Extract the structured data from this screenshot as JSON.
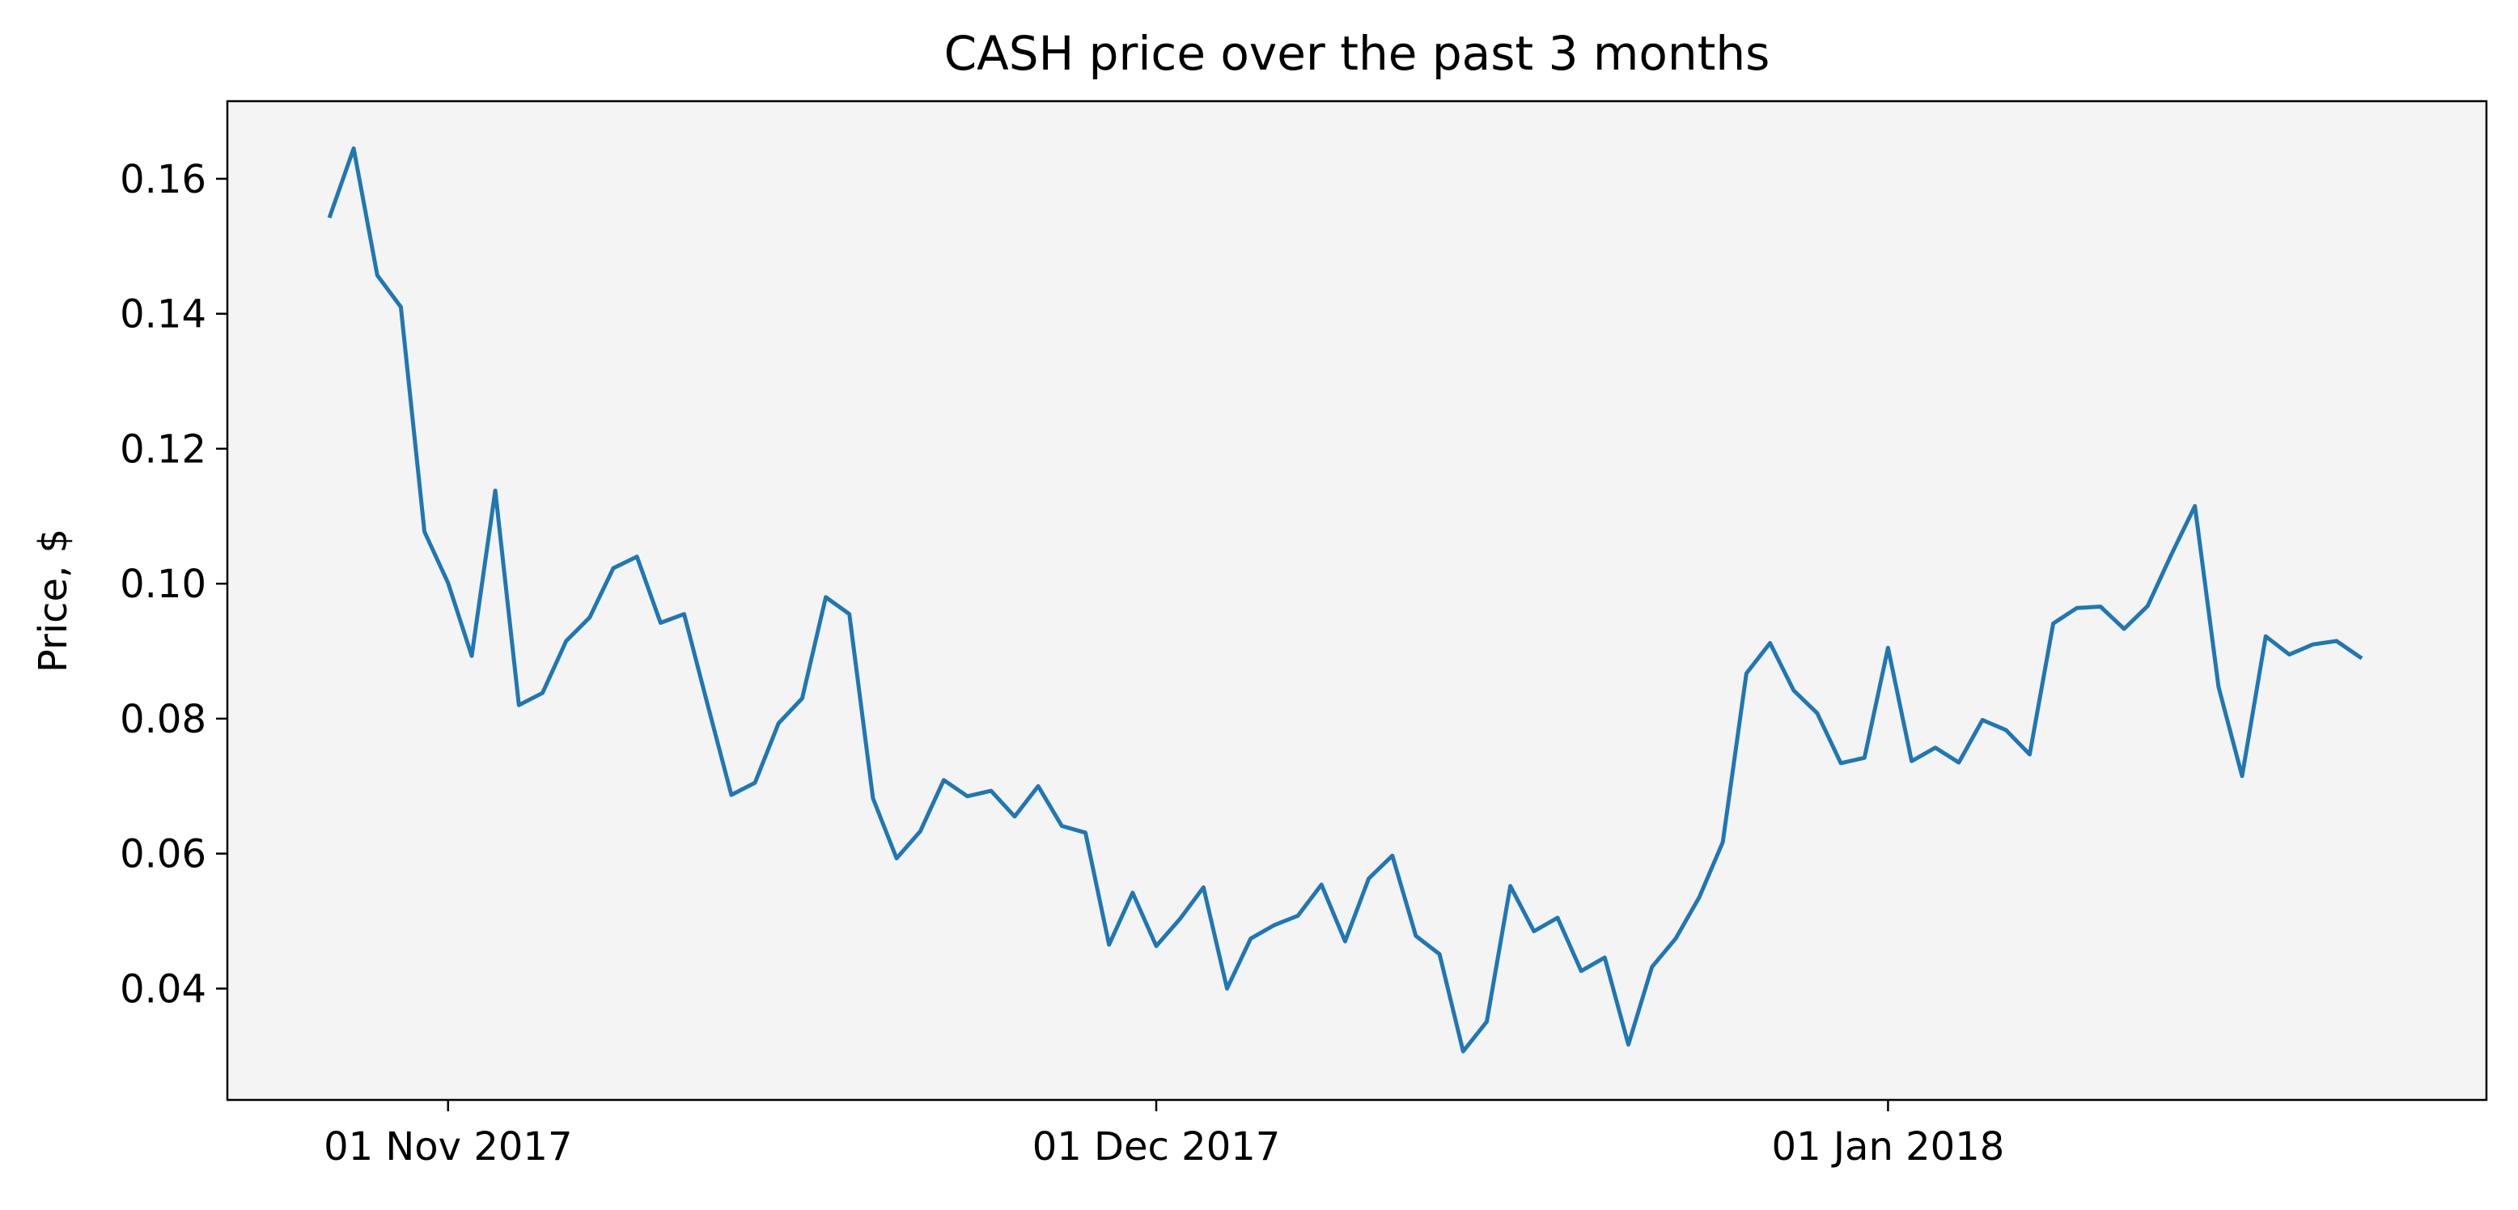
{
  "chart_data": {
    "type": "line",
    "title": "CASH price over the past 3 months",
    "xlabel": "",
    "ylabel": "Price, $",
    "x_start_date": "2017-10-27",
    "x_end_date": "2018-01-22",
    "x_ticks": [
      {
        "label": "01 Nov 2017",
        "date": "2017-11-01"
      },
      {
        "label": "01 Dec 2017",
        "date": "2017-12-01"
      },
      {
        "label": "01 Jan 2018",
        "date": "2018-01-01"
      }
    ],
    "ylim": [
      0.0235,
      0.1715
    ],
    "y_ticks": [
      {
        "label": "0.04",
        "value": 0.04
      },
      {
        "label": "0.06",
        "value": 0.06
      },
      {
        "label": "0.08",
        "value": 0.08
      },
      {
        "label": "0.10",
        "value": 0.1
      },
      {
        "label": "0.12",
        "value": 0.12
      },
      {
        "label": "0.14",
        "value": 0.14
      },
      {
        "label": "0.16",
        "value": 0.16
      }
    ],
    "grid": false,
    "legend": "none",
    "colors": {
      "line": "#1f77b4",
      "plot_background": "#f4f4f4",
      "axes": "#000000"
    },
    "series": [
      {
        "values": [
          0.1545,
          0.1645,
          0.1457,
          0.141,
          0.1077,
          0.1001,
          0.0893,
          0.1138,
          0.082,
          0.0838,
          0.0915,
          0.095,
          0.1023,
          0.104,
          0.0942,
          0.0955,
          0.082,
          0.0687,
          0.0705,
          0.0793,
          0.083,
          0.098,
          0.0955,
          0.0682,
          0.0593,
          0.0633,
          0.0709,
          0.0685,
          0.0693,
          0.0655,
          0.07,
          0.0641,
          0.0631,
          0.0465,
          0.0542,
          0.0463,
          0.0503,
          0.055,
          0.04,
          0.0474,
          0.0494,
          0.0508,
          0.0554,
          0.047,
          0.0563,
          0.0597,
          0.0478,
          0.0451,
          0.0307,
          0.0351,
          0.0552,
          0.0485,
          0.0505,
          0.0426,
          0.0446,
          0.0317,
          0.0432,
          0.0474,
          0.0535,
          0.0617,
          0.0867,
          0.0912,
          0.0842,
          0.0808,
          0.0734,
          0.0742,
          0.0905,
          0.0737,
          0.0757,
          0.0735,
          0.0798,
          0.0783,
          0.0747,
          0.0941,
          0.0964,
          0.0966,
          0.0933,
          0.0967,
          0.1043,
          0.1115,
          0.0847,
          0.0715,
          0.0922,
          0.0895,
          0.091,
          0.0915,
          0.0891
        ]
      }
    ]
  }
}
